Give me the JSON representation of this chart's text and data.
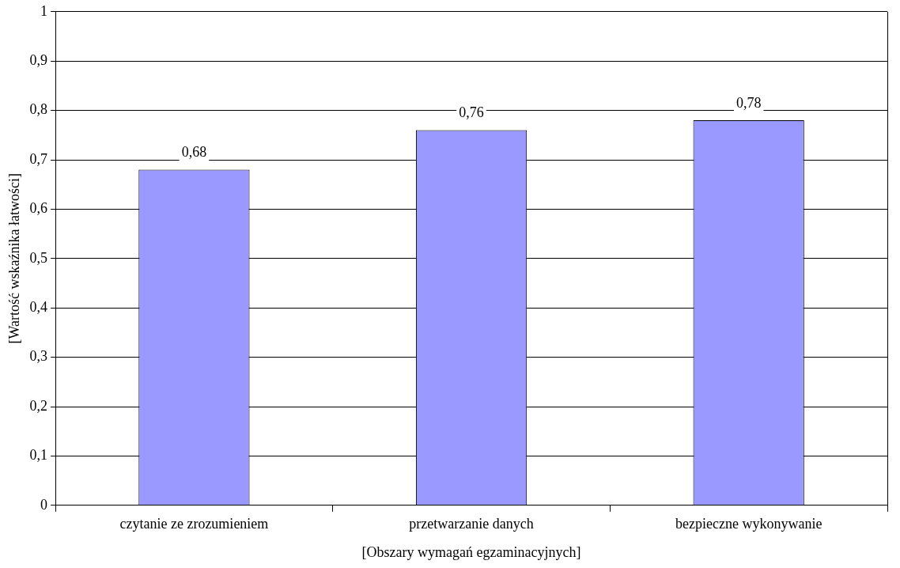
{
  "chart_data": {
    "type": "bar",
    "xlabel": "[Obszary wymagań egzaminacyjnych]",
    "ylabel": "[Wartość wskaźnika łatwości]",
    "categories": [
      "czytanie ze zrozumieniem",
      "przetwarzanie danych",
      "bezpieczne wykonywanie"
    ],
    "values": [
      0.68,
      0.76,
      0.78
    ],
    "value_labels": [
      "0,68",
      "0,76",
      "0,78"
    ],
    "color": "#9999ff",
    "ylim": [
      0,
      1
    ],
    "yticks": [
      {
        "value": 0,
        "label": "0"
      },
      {
        "value": 0.1,
        "label": "0,1"
      },
      {
        "value": 0.2,
        "label": "0,2"
      },
      {
        "value": 0.3,
        "label": "0,3"
      },
      {
        "value": 0.4,
        "label": "0,4"
      },
      {
        "value": 0.5,
        "label": "0,5"
      },
      {
        "value": 0.6,
        "label": "0,6"
      },
      {
        "value": 0.7,
        "label": "0,7"
      },
      {
        "value": 0.8,
        "label": "0,8"
      },
      {
        "value": 0.9,
        "label": "0,9"
      },
      {
        "value": 1,
        "label": "1"
      }
    ],
    "grid": "y",
    "legend": false
  }
}
